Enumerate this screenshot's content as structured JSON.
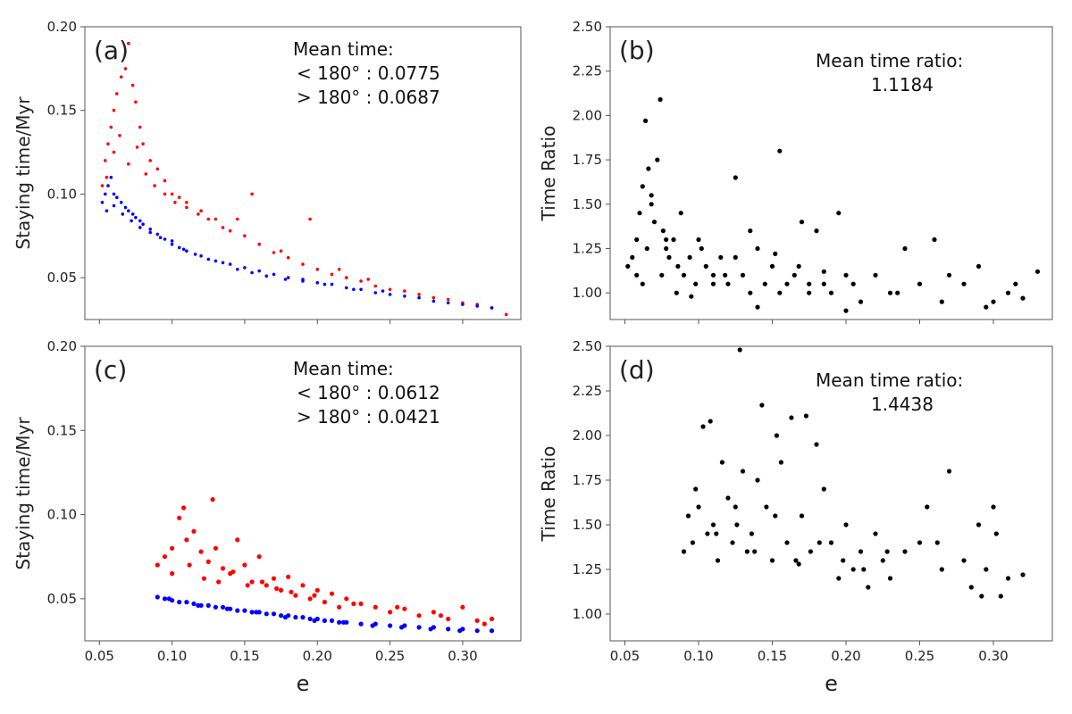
{
  "figure": {
    "colors": {
      "lt180": "#ff0000",
      "gt180": "#0000ff",
      "ratio": "#000000"
    }
  },
  "chart_data": [
    {
      "panel": "a",
      "type": "scatter",
      "label": "(a)",
      "xlabel": "",
      "ylabel": "Staying time/Myr",
      "xlim": [
        0.04,
        0.34
      ],
      "ylim": [
        0.025,
        0.2
      ],
      "xticks": [
        0.05,
        0.1,
        0.15,
        0.2,
        0.25,
        0.3
      ],
      "xticklabels_shown": false,
      "yticks": [
        0.05,
        0.1,
        0.15,
        0.2
      ],
      "yticklabels": [
        "0.05",
        "0.10",
        "0.15",
        "0.20"
      ],
      "annotation": {
        "title": "Mean time:",
        "line1": "< 180° : 0.0775",
        "line2": "> 180° : 0.0687"
      },
      "series": [
        {
          "name": "< 180°",
          "color": "#ff0000",
          "x": [
            0.052,
            0.054,
            0.056,
            0.058,
            0.06,
            0.062,
            0.065,
            0.068,
            0.07,
            0.073,
            0.075,
            0.078,
            0.08,
            0.085,
            0.09,
            0.095,
            0.1,
            0.105,
            0.11,
            0.12,
            0.13,
            0.14,
            0.15,
            0.16,
            0.17,
            0.18,
            0.19,
            0.2,
            0.21,
            0.22,
            0.23,
            0.24,
            0.25,
            0.26,
            0.27,
            0.28,
            0.29,
            0.3,
            0.31,
            0.32,
            0.33,
            0.055,
            0.06,
            0.064,
            0.07,
            0.076,
            0.082,
            0.088,
            0.095,
            0.102,
            0.11,
            0.118,
            0.125,
            0.135,
            0.145,
            0.155,
            0.175,
            0.195,
            0.215,
            0.235
          ],
          "y": [
            0.105,
            0.12,
            0.13,
            0.14,
            0.15,
            0.16,
            0.17,
            0.175,
            0.19,
            0.165,
            0.155,
            0.14,
            0.13,
            0.12,
            0.115,
            0.108,
            0.1,
            0.098,
            0.095,
            0.09,
            0.085,
            0.078,
            0.075,
            0.07,
            0.065,
            0.062,
            0.058,
            0.055,
            0.052,
            0.05,
            0.048,
            0.045,
            0.043,
            0.042,
            0.04,
            0.038,
            0.037,
            0.035,
            0.034,
            0.032,
            0.028,
            0.11,
            0.125,
            0.135,
            0.118,
            0.128,
            0.112,
            0.105,
            0.1,
            0.095,
            0.092,
            0.088,
            0.085,
            0.08,
            0.085,
            0.1,
            0.066,
            0.085,
            0.055,
            0.049
          ]
        },
        {
          "name": "> 180°",
          "color": "#0000ff",
          "x": [
            0.052,
            0.054,
            0.056,
            0.058,
            0.06,
            0.062,
            0.065,
            0.068,
            0.07,
            0.073,
            0.075,
            0.078,
            0.08,
            0.085,
            0.09,
            0.095,
            0.1,
            0.105,
            0.11,
            0.12,
            0.13,
            0.14,
            0.15,
            0.16,
            0.17,
            0.18,
            0.19,
            0.2,
            0.21,
            0.22,
            0.23,
            0.24,
            0.25,
            0.26,
            0.27,
            0.28,
            0.29,
            0.3,
            0.31,
            0.32,
            0.055,
            0.06,
            0.066,
            0.072,
            0.078,
            0.085,
            0.092,
            0.1,
            0.108,
            0.116,
            0.125,
            0.135,
            0.145,
            0.155,
            0.165,
            0.178,
            0.19,
            0.205,
            0.225,
            0.245
          ],
          "y": [
            0.095,
            0.1,
            0.105,
            0.11,
            0.1,
            0.098,
            0.095,
            0.092,
            0.09,
            0.088,
            0.086,
            0.084,
            0.082,
            0.079,
            0.076,
            0.073,
            0.07,
            0.068,
            0.066,
            0.063,
            0.06,
            0.058,
            0.056,
            0.054,
            0.052,
            0.05,
            0.049,
            0.047,
            0.046,
            0.044,
            0.043,
            0.041,
            0.04,
            0.039,
            0.038,
            0.036,
            0.035,
            0.034,
            0.033,
            0.032,
            0.09,
            0.093,
            0.088,
            0.084,
            0.08,
            0.077,
            0.074,
            0.072,
            0.067,
            0.064,
            0.061,
            0.059,
            0.055,
            0.053,
            0.051,
            0.049,
            0.048,
            0.046,
            0.043,
            0.042
          ]
        }
      ]
    },
    {
      "panel": "b",
      "type": "scatter",
      "label": "(b)",
      "xlabel": "",
      "ylabel": "Time Ratio",
      "xlim": [
        0.04,
        0.34
      ],
      "ylim": [
        0.85,
        2.5
      ],
      "xticks": [
        0.05,
        0.1,
        0.15,
        0.2,
        0.25,
        0.3
      ],
      "xticklabels_shown": false,
      "yticks": [
        1.0,
        1.25,
        1.5,
        1.75,
        2.0,
        2.25,
        2.5
      ],
      "yticklabels": [
        "1.00",
        "1.25",
        "1.50",
        "1.75",
        "2.00",
        "2.25",
        "2.50"
      ],
      "annotation": {
        "title": "Mean time ratio:",
        "value": "1.1184"
      },
      "series": [
        {
          "name": "ratio",
          "color": "#000000",
          "x": [
            0.052,
            0.055,
            0.058,
            0.06,
            0.062,
            0.064,
            0.066,
            0.068,
            0.07,
            0.072,
            0.074,
            0.076,
            0.078,
            0.08,
            0.083,
            0.086,
            0.09,
            0.094,
            0.098,
            0.1,
            0.105,
            0.11,
            0.115,
            0.12,
            0.125,
            0.13,
            0.135,
            0.14,
            0.145,
            0.15,
            0.155,
            0.16,
            0.165,
            0.17,
            0.175,
            0.18,
            0.185,
            0.19,
            0.195,
            0.2,
            0.205,
            0.21,
            0.22,
            0.23,
            0.24,
            0.25,
            0.26,
            0.27,
            0.28,
            0.29,
            0.3,
            0.31,
            0.32,
            0.33,
            0.062,
            0.065,
            0.075,
            0.085,
            0.095,
            0.11,
            0.125,
            0.14,
            0.155,
            0.175,
            0.2,
            0.235,
            0.265,
            0.295,
            0.315,
            0.058,
            0.068,
            0.078,
            0.088,
            0.102,
            0.118,
            0.135,
            0.152,
            0.168,
            0.185
          ],
          "y": [
            1.15,
            1.2,
            1.3,
            1.45,
            1.6,
            1.97,
            1.7,
            1.55,
            1.4,
            1.75,
            2.09,
            1.35,
            1.25,
            1.2,
            1.3,
            1.15,
            1.1,
            1.2,
            1.05,
            1.3,
            1.15,
            1.1,
            1.2,
            1.05,
            1.65,
            1.1,
            1.0,
            1.25,
            1.05,
            1.15,
            1.8,
            1.05,
            1.1,
            1.4,
            1.0,
            1.35,
            1.05,
            1.0,
            1.45,
            1.1,
            1.05,
            0.95,
            1.1,
            1.0,
            1.25,
            1.05,
            1.3,
            1.1,
            1.05,
            1.15,
            0.95,
            1.0,
            0.97,
            1.12,
            1.05,
            1.25,
            1.1,
            1.0,
            0.98,
            1.05,
            1.2,
            0.92,
            1.0,
            1.05,
            0.9,
            1.0,
            0.95,
            0.92,
            1.05,
            1.1,
            1.5,
            1.3,
            1.45,
            1.25,
            1.1,
            1.35,
            1.22,
            1.15,
            1.12
          ]
        }
      ]
    },
    {
      "panel": "c",
      "type": "scatter",
      "label": "(c)",
      "xlabel": "e",
      "ylabel": "Staying time/Myr",
      "xlim": [
        0.04,
        0.34
      ],
      "ylim": [
        0.025,
        0.2
      ],
      "xticks": [
        0.05,
        0.1,
        0.15,
        0.2,
        0.25,
        0.3
      ],
      "xticklabels": [
        "0.05",
        "0.10",
        "0.15",
        "0.20",
        "0.25",
        "0.30"
      ],
      "yticks": [
        0.05,
        0.1,
        0.15,
        0.2
      ],
      "yticklabels": [
        "0.05",
        "0.10",
        "0.15",
        "0.20"
      ],
      "annotation": {
        "title": "Mean time:",
        "line1": "< 180° : 0.0612",
        "line2": "> 180° : 0.0421"
      },
      "series": [
        {
          "name": "< 180°",
          "color": "#ff0000",
          "x": [
            0.09,
            0.095,
            0.1,
            0.105,
            0.108,
            0.11,
            0.115,
            0.12,
            0.125,
            0.128,
            0.13,
            0.135,
            0.14,
            0.145,
            0.15,
            0.155,
            0.16,
            0.165,
            0.17,
            0.175,
            0.18,
            0.185,
            0.19,
            0.195,
            0.2,
            0.205,
            0.21,
            0.215,
            0.22,
            0.23,
            0.24,
            0.25,
            0.26,
            0.27,
            0.28,
            0.29,
            0.3,
            0.31,
            0.32,
            0.1,
            0.112,
            0.122,
            0.132,
            0.142,
            0.152,
            0.162,
            0.172,
            0.182,
            0.198,
            0.225,
            0.255,
            0.285,
            0.315
          ],
          "y": [
            0.07,
            0.075,
            0.08,
            0.098,
            0.104,
            0.085,
            0.09,
            0.078,
            0.072,
            0.109,
            0.08,
            0.068,
            0.065,
            0.085,
            0.07,
            0.06,
            0.075,
            0.058,
            0.062,
            0.055,
            0.063,
            0.052,
            0.058,
            0.05,
            0.055,
            0.048,
            0.053,
            0.045,
            0.05,
            0.047,
            0.045,
            0.042,
            0.044,
            0.04,
            0.042,
            0.038,
            0.045,
            0.037,
            0.038,
            0.065,
            0.07,
            0.062,
            0.06,
            0.066,
            0.058,
            0.06,
            0.056,
            0.054,
            0.052,
            0.047,
            0.045,
            0.04,
            0.035
          ]
        },
        {
          "name": "> 180°",
          "color": "#0000ff",
          "x": [
            0.09,
            0.095,
            0.1,
            0.105,
            0.11,
            0.115,
            0.12,
            0.125,
            0.13,
            0.135,
            0.14,
            0.145,
            0.15,
            0.155,
            0.16,
            0.165,
            0.17,
            0.175,
            0.18,
            0.185,
            0.19,
            0.195,
            0.2,
            0.205,
            0.21,
            0.215,
            0.22,
            0.23,
            0.24,
            0.25,
            0.26,
            0.27,
            0.28,
            0.29,
            0.3,
            0.31,
            0.32,
            0.098,
            0.118,
            0.138,
            0.158,
            0.178,
            0.198,
            0.218,
            0.238,
            0.258,
            0.278,
            0.298
          ],
          "y": [
            0.051,
            0.05,
            0.049,
            0.048,
            0.048,
            0.047,
            0.046,
            0.046,
            0.045,
            0.045,
            0.044,
            0.043,
            0.043,
            0.042,
            0.042,
            0.041,
            0.041,
            0.04,
            0.04,
            0.039,
            0.039,
            0.038,
            0.038,
            0.037,
            0.037,
            0.036,
            0.036,
            0.035,
            0.035,
            0.034,
            0.034,
            0.033,
            0.033,
            0.032,
            0.032,
            0.031,
            0.031,
            0.05,
            0.046,
            0.044,
            0.042,
            0.039,
            0.037,
            0.036,
            0.034,
            0.033,
            0.032,
            0.031
          ]
        }
      ]
    },
    {
      "panel": "d",
      "type": "scatter",
      "label": "(d)",
      "xlabel": "e",
      "ylabel": "Time Ratio",
      "xlim": [
        0.04,
        0.34
      ],
      "ylim": [
        0.85,
        2.5
      ],
      "xticks": [
        0.05,
        0.1,
        0.15,
        0.2,
        0.25,
        0.3
      ],
      "xticklabels": [
        "0.05",
        "0.10",
        "0.15",
        "0.20",
        "0.25",
        "0.30"
      ],
      "yticks": [
        1.0,
        1.25,
        1.5,
        1.75,
        2.0,
        2.25,
        2.5
      ],
      "yticklabels": [
        "1.00",
        "1.25",
        "1.50",
        "1.75",
        "2.00",
        "2.25",
        "2.50"
      ],
      "annotation": {
        "title": "Mean time ratio:",
        "value": "1.4438"
      },
      "series": [
        {
          "name": "ratio",
          "color": "#000000",
          "x": [
            0.09,
            0.093,
            0.096,
            0.1,
            0.103,
            0.106,
            0.108,
            0.11,
            0.113,
            0.116,
            0.12,
            0.123,
            0.126,
            0.128,
            0.13,
            0.133,
            0.136,
            0.14,
            0.143,
            0.146,
            0.15,
            0.153,
            0.156,
            0.16,
            0.163,
            0.166,
            0.17,
            0.173,
            0.176,
            0.18,
            0.185,
            0.19,
            0.195,
            0.2,
            0.205,
            0.21,
            0.215,
            0.22,
            0.225,
            0.23,
            0.24,
            0.25,
            0.255,
            0.265,
            0.27,
            0.28,
            0.285,
            0.29,
            0.295,
            0.3,
            0.305,
            0.31,
            0.32,
            0.098,
            0.112,
            0.125,
            0.138,
            0.152,
            0.168,
            0.182,
            0.198,
            0.212,
            0.228,
            0.262,
            0.292,
            0.302
          ],
          "y": [
            1.35,
            1.55,
            1.4,
            1.6,
            2.05,
            1.45,
            2.08,
            1.5,
            1.3,
            1.85,
            1.65,
            1.4,
            1.5,
            2.48,
            1.8,
            1.35,
            1.45,
            1.75,
            2.17,
            1.6,
            1.3,
            2.0,
            1.85,
            1.4,
            2.1,
            1.3,
            1.55,
            2.11,
            1.35,
            1.95,
            1.7,
            1.4,
            1.2,
            1.5,
            1.25,
            1.35,
            1.15,
            1.45,
            1.3,
            1.2,
            1.35,
            1.4,
            1.6,
            1.25,
            1.8,
            1.3,
            1.15,
            1.5,
            1.25,
            1.6,
            1.1,
            1.2,
            1.22,
            1.7,
            1.45,
            1.6,
            1.35,
            1.55,
            1.28,
            1.4,
            1.3,
            1.25,
            1.35,
            1.4,
            1.1,
            1.45
          ]
        }
      ]
    }
  ]
}
